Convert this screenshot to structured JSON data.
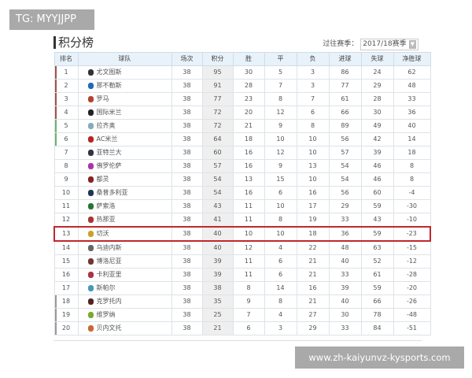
{
  "watermark_top": "TG: MYYJJPP",
  "watermark_bottom": "www.zh-kaiyunvz-kysports.com",
  "title": "积分榜",
  "season_label": "过往赛季：",
  "season_value": "2017/18赛季",
  "headers": [
    "排名",
    "球队",
    "场次",
    "积分",
    "胜",
    "平",
    "负",
    "进球",
    "失球",
    "净胜球"
  ],
  "highlight_rank": 13,
  "zone_colors": {
    "cl": "#a0524a",
    "el": "#6db36d",
    "rel": "#999999",
    "highlight": "#c0282d"
  },
  "rows": [
    [
      "1",
      "尤文图斯",
      "38",
      "95",
      "30",
      "5",
      "3",
      "86",
      "24",
      "62"
    ],
    [
      "2",
      "那不勒斯",
      "38",
      "91",
      "28",
      "7",
      "3",
      "77",
      "29",
      "48"
    ],
    [
      "3",
      "罗马",
      "38",
      "77",
      "23",
      "8",
      "7",
      "61",
      "28",
      "33"
    ],
    [
      "4",
      "国际米兰",
      "38",
      "72",
      "20",
      "12",
      "6",
      "66",
      "30",
      "36"
    ],
    [
      "5",
      "拉齐奥",
      "38",
      "72",
      "21",
      "9",
      "8",
      "89",
      "49",
      "40"
    ],
    [
      "6",
      "AC米兰",
      "38",
      "64",
      "18",
      "10",
      "10",
      "56",
      "42",
      "14"
    ],
    [
      "7",
      "亚特兰大",
      "38",
      "60",
      "16",
      "12",
      "10",
      "57",
      "39",
      "18"
    ],
    [
      "8",
      "佛罗伦萨",
      "38",
      "57",
      "16",
      "9",
      "13",
      "54",
      "46",
      "8"
    ],
    [
      "9",
      "都灵",
      "38",
      "54",
      "13",
      "15",
      "10",
      "54",
      "46",
      "8"
    ],
    [
      "10",
      "桑普多利亚",
      "38",
      "54",
      "16",
      "6",
      "16",
      "56",
      "60",
      "-4"
    ],
    [
      "11",
      "萨索洛",
      "38",
      "43",
      "11",
      "10",
      "17",
      "29",
      "59",
      "-30"
    ],
    [
      "12",
      "热那亚",
      "38",
      "41",
      "11",
      "8",
      "19",
      "33",
      "43",
      "-10"
    ],
    [
      "13",
      "切沃",
      "38",
      "40",
      "10",
      "10",
      "18",
      "36",
      "59",
      "-23"
    ],
    [
      "14",
      "乌迪内斯",
      "38",
      "40",
      "12",
      "4",
      "22",
      "48",
      "63",
      "-15"
    ],
    [
      "15",
      "博洛尼亚",
      "38",
      "39",
      "11",
      "6",
      "21",
      "40",
      "52",
      "-12"
    ],
    [
      "16",
      "卡利亚里",
      "38",
      "39",
      "11",
      "6",
      "21",
      "33",
      "61",
      "-28"
    ],
    [
      "17",
      "斯帕尔",
      "38",
      "38",
      "8",
      "14",
      "16",
      "39",
      "59",
      "-20"
    ],
    [
      "18",
      "克罗托内",
      "38",
      "35",
      "9",
      "8",
      "21",
      "40",
      "66",
      "-26"
    ],
    [
      "19",
      "维罗纳",
      "38",
      "25",
      "7",
      "4",
      "27",
      "30",
      "78",
      "-48"
    ],
    [
      "20",
      "贝内文托",
      "38",
      "21",
      "6",
      "3",
      "29",
      "33",
      "84",
      "-51"
    ]
  ]
}
